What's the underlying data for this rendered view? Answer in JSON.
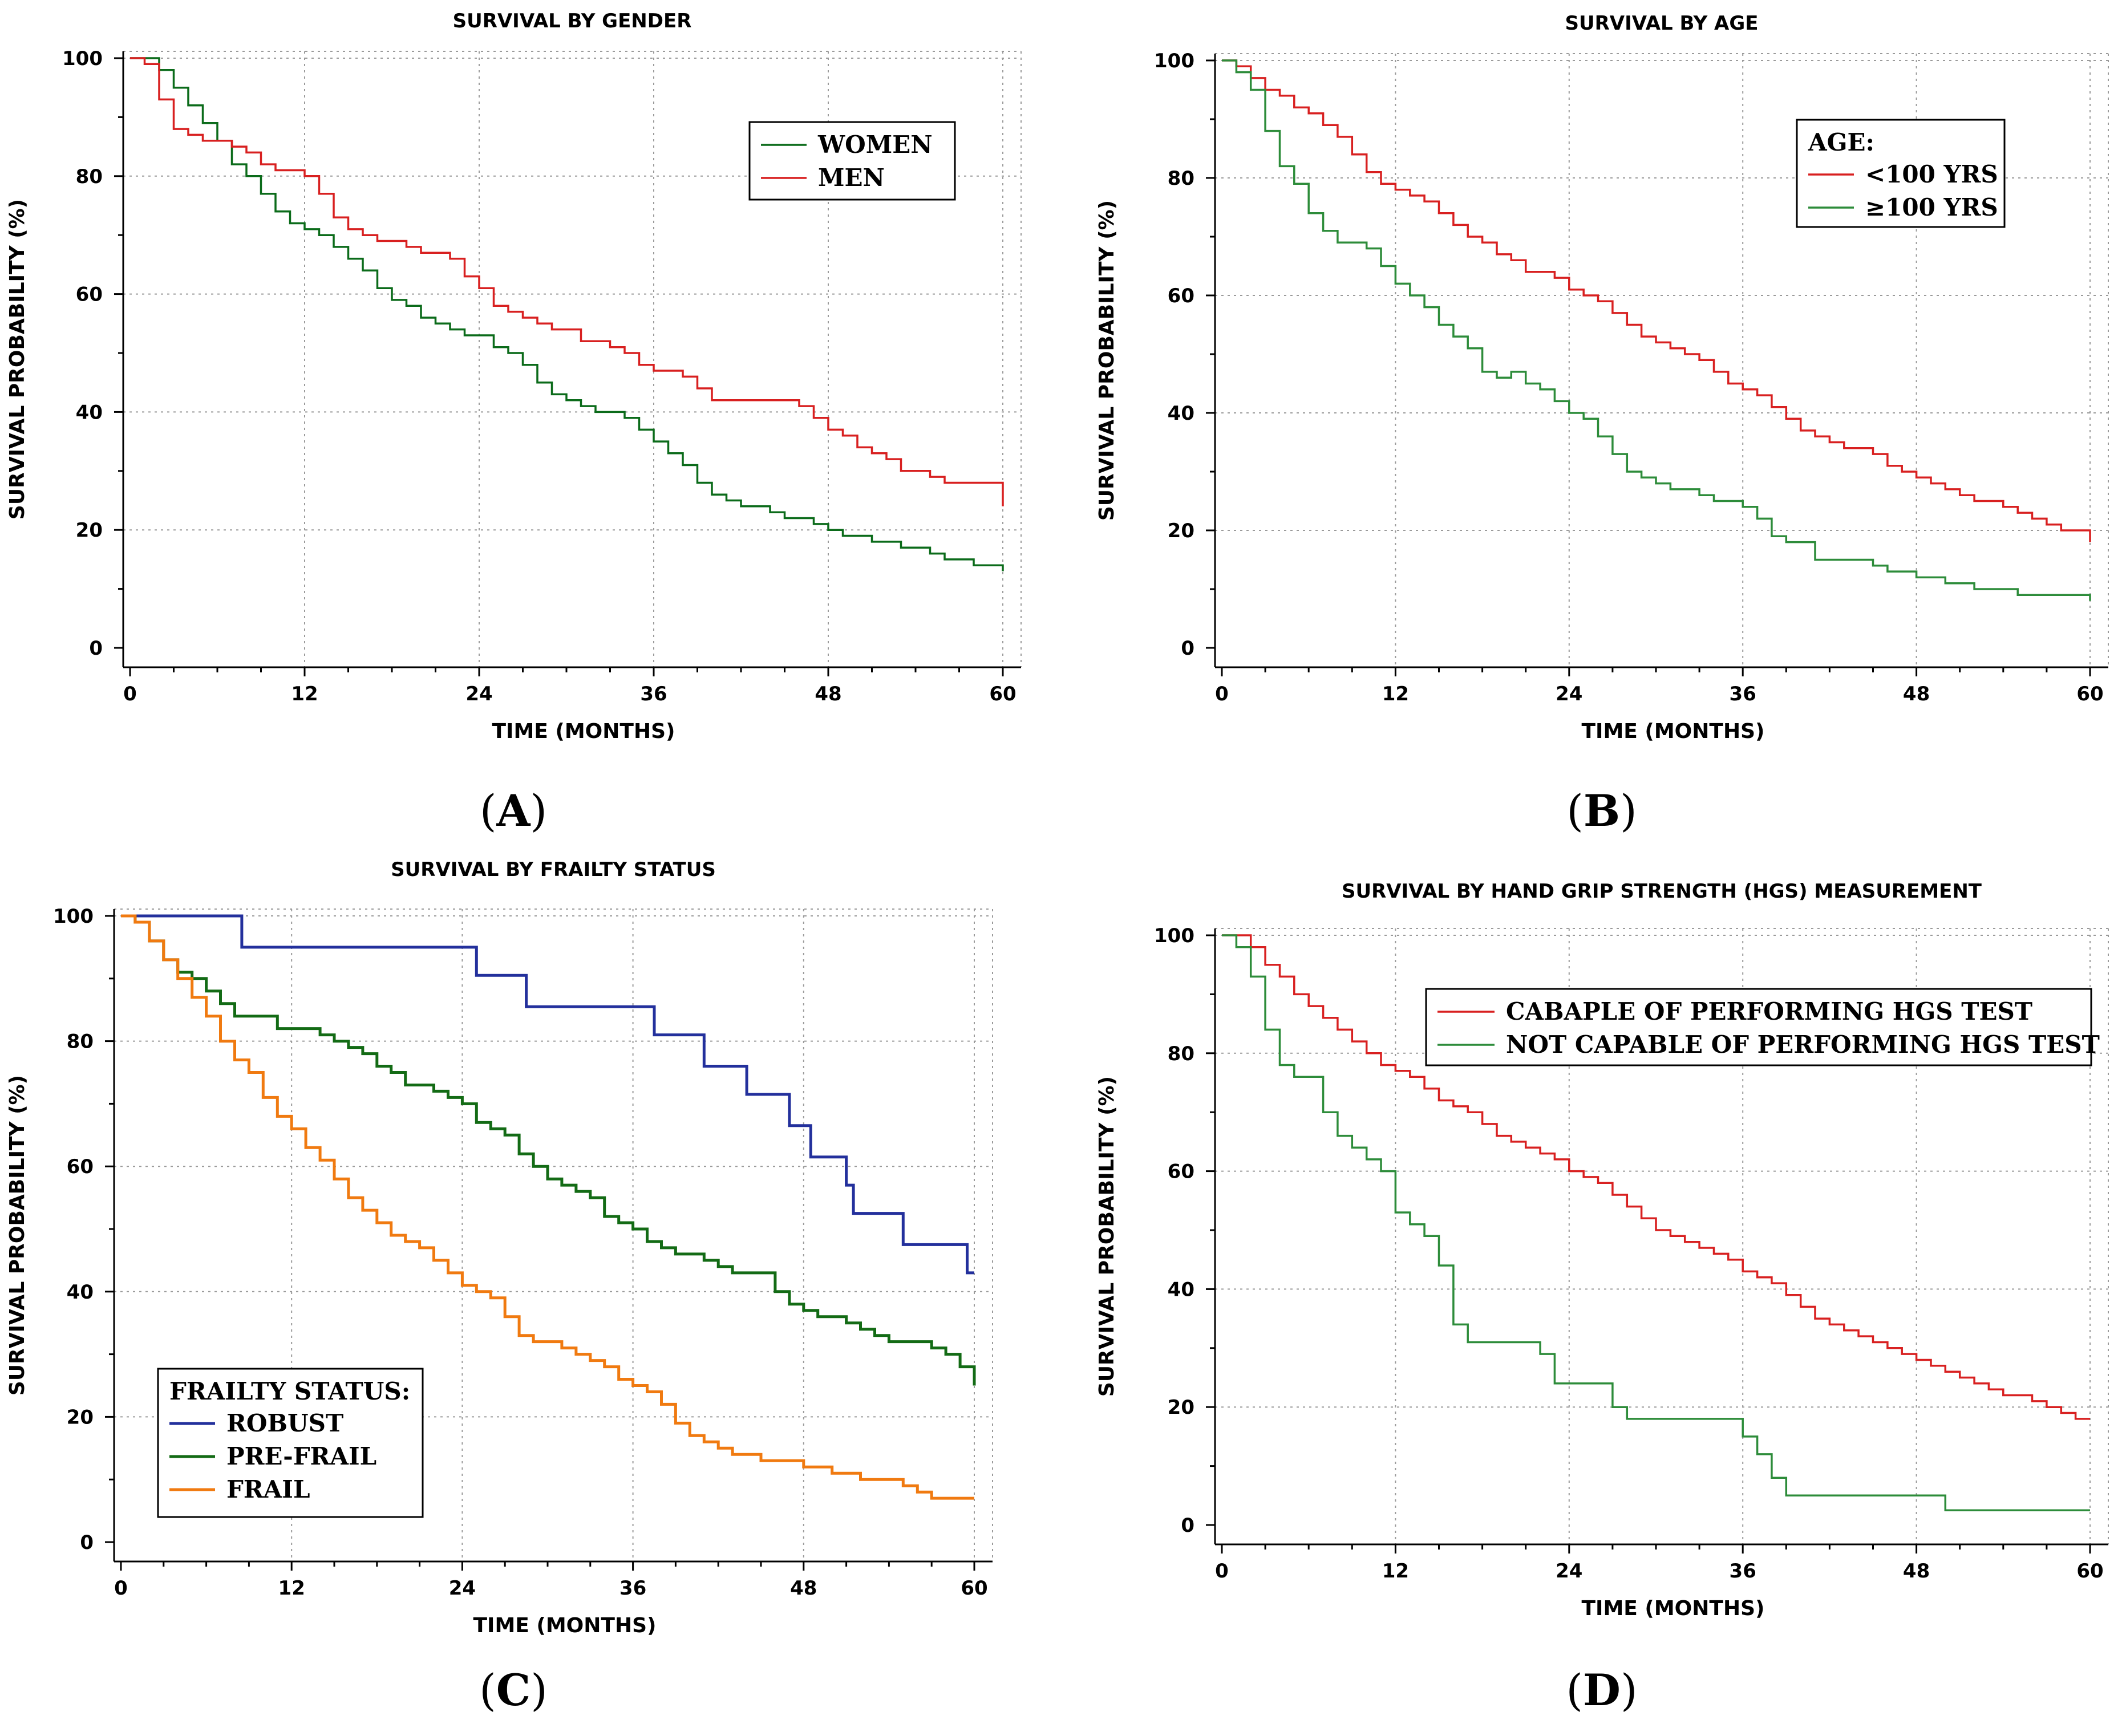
{
  "chart_data": [
    {
      "id": "A",
      "type": "line",
      "title": "SURVIVAL BY GENDER",
      "xlabel": "TIME (MONTHS)",
      "ylabel": "SURVIVAL PROBABILITY (%)",
      "xlim": [
        0,
        60
      ],
      "ylim": [
        0,
        100
      ],
      "xticks": [
        0,
        12,
        24,
        36,
        48,
        60
      ],
      "yticks": [
        0,
        20,
        40,
        60,
        80,
        100
      ],
      "grid": true,
      "legend_position": "top-right",
      "panel_label": "A",
      "legend_title": "",
      "series": [
        {
          "name": "WOMEN",
          "color": "#0b6b1a",
          "x": [
            0,
            1,
            2,
            3,
            4,
            5,
            6,
            7,
            8,
            9,
            10,
            11,
            12,
            13,
            14,
            15,
            16,
            17,
            18,
            19,
            20,
            21,
            22,
            23,
            24,
            25,
            26,
            27,
            28,
            29,
            30,
            31,
            32,
            33,
            34,
            35,
            36,
            37,
            38,
            39,
            40,
            41,
            42,
            43,
            44,
            45,
            46,
            47,
            48,
            49,
            50,
            51,
            52,
            53,
            54,
            55,
            56,
            57,
            58,
            59,
            60
          ],
          "values": [
            100,
            100,
            98,
            95,
            92,
            89,
            86,
            82,
            80,
            77,
            74,
            72,
            71,
            70,
            68,
            66,
            64,
            61,
            59,
            58,
            56,
            55,
            54,
            53,
            53,
            51,
            50,
            48,
            45,
            43,
            42,
            41,
            40,
            40,
            39,
            37,
            35,
            33,
            31,
            28,
            26,
            25,
            24,
            24,
            23,
            22,
            22,
            21,
            20,
            19,
            19,
            18,
            18,
            17,
            17,
            16,
            15,
            15,
            14,
            14,
            13
          ]
        },
        {
          "name": "MEN",
          "color": "#d82020",
          "x": [
            0,
            1,
            2,
            3,
            4,
            5,
            6,
            7,
            8,
            9,
            10,
            11,
            12,
            13,
            14,
            15,
            16,
            17,
            18,
            19,
            20,
            21,
            22,
            23,
            24,
            25,
            26,
            27,
            28,
            29,
            30,
            31,
            32,
            33,
            34,
            35,
            36,
            37,
            38,
            39,
            40,
            41,
            42,
            43,
            44,
            45,
            46,
            47,
            48,
            49,
            50,
            51,
            52,
            53,
            54,
            55,
            56,
            57,
            58,
            59,
            60
          ],
          "values": [
            100,
            99,
            93,
            88,
            87,
            86,
            86,
            85,
            84,
            82,
            81,
            81,
            80,
            77,
            73,
            71,
            70,
            69,
            69,
            68,
            67,
            67,
            66,
            63,
            61,
            58,
            57,
            56,
            55,
            54,
            54,
            52,
            52,
            51,
            50,
            48,
            47,
            47,
            46,
            44,
            42,
            42,
            42,
            42,
            42,
            42,
            41,
            39,
            37,
            36,
            34,
            33,
            32,
            30,
            30,
            29,
            28,
            28,
            28,
            28,
            24
          ]
        }
      ]
    },
    {
      "id": "B",
      "type": "line",
      "title": "SURVIVAL BY AGE",
      "xlabel": "TIME (MONTHS)",
      "ylabel": "SURVIVAL PROBABILITY (%)",
      "xlim": [
        0,
        60
      ],
      "ylim": [
        0,
        100
      ],
      "xticks": [
        0,
        12,
        24,
        36,
        48,
        60
      ],
      "yticks": [
        0,
        20,
        40,
        60,
        80,
        100
      ],
      "grid": true,
      "legend_position": "top-right",
      "panel_label": "B",
      "legend_title": "AGE:",
      "series": [
        {
          "name": "<100 YRS",
          "color": "#d82020",
          "x": [
            0,
            1,
            2,
            3,
            4,
            5,
            6,
            7,
            8,
            9,
            10,
            11,
            12,
            13,
            14,
            15,
            16,
            17,
            18,
            19,
            20,
            21,
            22,
            23,
            24,
            25,
            26,
            27,
            28,
            29,
            30,
            31,
            32,
            33,
            34,
            35,
            36,
            37,
            38,
            39,
            40,
            41,
            42,
            43,
            44,
            45,
            46,
            47,
            48,
            49,
            50,
            51,
            52,
            53,
            54,
            55,
            56,
            57,
            58,
            59,
            60
          ],
          "values": [
            100,
            99,
            97,
            95,
            94,
            92,
            91,
            89,
            87,
            84,
            81,
            79,
            78,
            77,
            76,
            74,
            72,
            70,
            69,
            67,
            66,
            64,
            64,
            63,
            61,
            60,
            59,
            57,
            55,
            53,
            52,
            51,
            50,
            49,
            47,
            45,
            44,
            43,
            41,
            39,
            37,
            36,
            35,
            34,
            34,
            33,
            31,
            30,
            29,
            28,
            27,
            26,
            25,
            25,
            24,
            23,
            22,
            21,
            20,
            20,
            18
          ]
        },
        {
          "name": "≥100 YRS",
          "color": "#2d8c3a",
          "x": [
            0,
            1,
            2,
            3,
            4,
            5,
            6,
            7,
            8,
            9,
            10,
            11,
            12,
            13,
            14,
            15,
            16,
            17,
            18,
            19,
            20,
            21,
            22,
            23,
            24,
            25,
            26,
            27,
            28,
            29,
            30,
            31,
            32,
            33,
            34,
            35,
            36,
            37,
            38,
            39,
            40,
            41,
            42,
            43,
            44,
            45,
            46,
            47,
            48,
            49,
            50,
            51,
            52,
            53,
            54,
            55,
            56,
            57,
            58,
            59,
            60
          ],
          "values": [
            100,
            98,
            95,
            88,
            82,
            79,
            74,
            71,
            69,
            69,
            68,
            65,
            62,
            60,
            58,
            55,
            53,
            51,
            47,
            46,
            47,
            45,
            44,
            42,
            40,
            39,
            36,
            33,
            30,
            29,
            28,
            27,
            27,
            26,
            25,
            25,
            24,
            22,
            19,
            18,
            18,
            15,
            15,
            15,
            15,
            14,
            13,
            13,
            12,
            12,
            11,
            11,
            10,
            10,
            10,
            9,
            9,
            9,
            9,
            9,
            8
          ]
        }
      ]
    },
    {
      "id": "C",
      "type": "line",
      "title": "SURVIVAL BY FRAILTY STATUS",
      "xlabel": "TIME (MONTHS)",
      "ylabel": "SURVIVAL PROBABILITY (%)",
      "xlim": [
        0,
        60
      ],
      "ylim": [
        0,
        100
      ],
      "xticks": [
        0,
        12,
        24,
        36,
        48,
        60
      ],
      "yticks": [
        0,
        20,
        40,
        60,
        80,
        100
      ],
      "grid": true,
      "legend_position": "bottom-left",
      "panel_label": "C",
      "legend_title": "FRAILTY STATUS:",
      "series": [
        {
          "name": "ROBUST",
          "color": "#23309c",
          "x": [
            0,
            8.5,
            8.5,
            25,
            25,
            28.5,
            28.5,
            37.5,
            37.5,
            41,
            41,
            44,
            44,
            47,
            47,
            48.5,
            48.5,
            51,
            51,
            51.5,
            51.5,
            55,
            55,
            59.5,
            59.5,
            60
          ],
          "values": [
            100,
            100,
            95,
            95,
            90.5,
            90.5,
            85.5,
            85.5,
            81,
            81,
            76,
            76,
            71.5,
            71.5,
            66.5,
            66.5,
            61.5,
            61.5,
            57,
            57,
            52.5,
            52.5,
            47.5,
            47.5,
            43,
            43
          ]
        },
        {
          "name": "PRE-FRAIL",
          "color": "#136b15",
          "x": [
            0,
            1,
            2,
            3,
            4,
            5,
            6,
            7,
            8,
            9,
            10,
            11,
            12,
            13,
            14,
            15,
            16,
            17,
            18,
            19,
            20,
            21,
            22,
            23,
            24,
            25,
            26,
            27,
            28,
            29,
            30,
            31,
            32,
            33,
            34,
            35,
            36,
            37,
            38,
            39,
            40,
            41,
            42,
            43,
            44,
            45,
            46,
            47,
            48,
            49,
            50,
            51,
            52,
            53,
            54,
            55,
            56,
            57,
            58,
            59,
            60
          ],
          "values": [
            100,
            99,
            96,
            93,
            91,
            90,
            88,
            86,
            84,
            84,
            84,
            82,
            82,
            82,
            81,
            80,
            79,
            78,
            76,
            75,
            73,
            73,
            72,
            71,
            70,
            67,
            66,
            65,
            62,
            60,
            58,
            57,
            56,
            55,
            52,
            51,
            50,
            48,
            47,
            46,
            46,
            45,
            44,
            43,
            43,
            43,
            40,
            38,
            37,
            36,
            36,
            35,
            34,
            33,
            32,
            32,
            32,
            31,
            30,
            28,
            25
          ]
        },
        {
          "name": "FRAIL",
          "color": "#f07a10",
          "x": [
            0,
            1,
            2,
            3,
            4,
            5,
            6,
            7,
            8,
            9,
            10,
            11,
            12,
            13,
            14,
            15,
            16,
            17,
            18,
            19,
            20,
            21,
            22,
            23,
            24,
            25,
            26,
            27,
            28,
            29,
            30,
            31,
            32,
            33,
            34,
            35,
            36,
            37,
            38,
            39,
            40,
            41,
            42,
            43,
            44,
            45,
            46,
            47,
            48,
            49,
            50,
            51,
            52,
            53,
            54,
            55,
            56,
            57,
            58,
            59,
            60
          ],
          "values": [
            100,
            99,
            96,
            93,
            90,
            87,
            84,
            80,
            77,
            75,
            71,
            68,
            66,
            63,
            61,
            58,
            55,
            53,
            51,
            49,
            48,
            47,
            45,
            43,
            41,
            40,
            39,
            36,
            33,
            32,
            32,
            31,
            30,
            29,
            28,
            26,
            25,
            24,
            22,
            19,
            17,
            16,
            15,
            14,
            14,
            13,
            13,
            13,
            12,
            12,
            11,
            11,
            10,
            10,
            10,
            9,
            8,
            7,
            7,
            7,
            7
          ]
        }
      ]
    },
    {
      "id": "D",
      "type": "line",
      "title": "SURVIVAL BY HAND GRIP STRENGTH (HGS) MEASUREMENT",
      "xlabel": "TIME (MONTHS)",
      "ylabel": "SURVIVAL PROBABILITY (%)",
      "xlim": [
        0,
        60
      ],
      "ylim": [
        0,
        100
      ],
      "xticks": [
        0,
        12,
        24,
        36,
        48,
        60
      ],
      "yticks": [
        0,
        20,
        40,
        60,
        80,
        100
      ],
      "grid": true,
      "legend_position": "top-right",
      "panel_label": "D",
      "legend_title": "",
      "series": [
        {
          "name": "CABAPLE OF PERFORMING HGS TEST",
          "color": "#d82020",
          "x": [
            0,
            1,
            2,
            3,
            4,
            5,
            6,
            7,
            8,
            9,
            10,
            11,
            12,
            13,
            14,
            15,
            16,
            17,
            18,
            19,
            20,
            21,
            22,
            23,
            24,
            25,
            26,
            27,
            28,
            29,
            30,
            31,
            32,
            33,
            34,
            35,
            36,
            37,
            38,
            39,
            40,
            41,
            42,
            43,
            44,
            45,
            46,
            47,
            48,
            49,
            50,
            51,
            52,
            53,
            54,
            55,
            56,
            57,
            58,
            59,
            60
          ],
          "values": [
            100,
            100,
            98,
            95,
            93,
            90,
            88,
            86,
            84,
            82,
            80,
            78,
            77,
            76,
            74,
            72,
            71,
            70,
            68,
            66,
            65,
            64,
            63,
            62,
            60,
            59,
            58,
            56,
            54,
            52,
            50,
            49,
            48,
            47,
            46,
            45,
            43,
            42,
            41,
            39,
            37,
            35,
            34,
            33,
            32,
            31,
            30,
            29,
            28,
            27,
            26,
            25,
            24,
            23,
            22,
            22,
            21,
            20,
            19,
            18,
            18
          ]
        },
        {
          "name": "NOT CAPABLE OF PERFORMING HGS TEST",
          "color": "#2d8c3a",
          "x": [
            0,
            1,
            2,
            3,
            4,
            5,
            5,
            6,
            7,
            7,
            8,
            9,
            9,
            10,
            11,
            11,
            12,
            12,
            13,
            13,
            14,
            15,
            15,
            16,
            16,
            17,
            17,
            18,
            22,
            22,
            23,
            23,
            27,
            27,
            28,
            36,
            36,
            37,
            37,
            38,
            38,
            39,
            39,
            40,
            50,
            50,
            60
          ],
          "values": [
            100,
            98,
            93,
            84,
            78,
            78,
            76,
            76,
            72,
            70,
            66,
            66,
            64,
            62,
            62,
            60,
            56,
            53,
            53,
            51,
            49,
            49,
            44,
            38,
            34,
            34,
            31,
            31,
            31,
            29,
            27,
            24,
            24,
            20,
            18,
            18,
            15,
            15,
            12,
            11,
            8,
            8,
            5,
            5,
            5,
            2.5,
            2.5
          ]
        }
      ]
    }
  ]
}
